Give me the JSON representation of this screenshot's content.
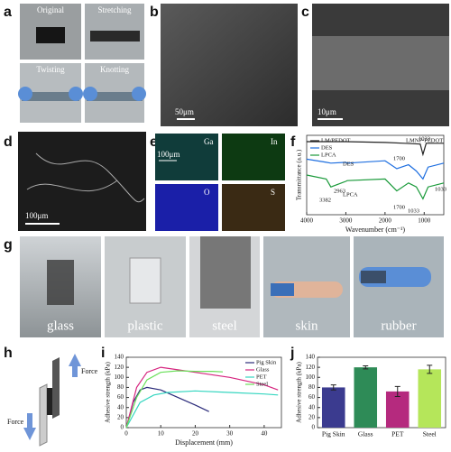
{
  "panels": {
    "a": {
      "label": "a",
      "captions": [
        "Original",
        "Stretching",
        "Twisting",
        "Knotting"
      ]
    },
    "b": {
      "label": "b",
      "scale_bar": "50μm"
    },
    "c": {
      "label": "c",
      "scale_bar": "10μm"
    },
    "d": {
      "label": "d",
      "scale_bar": "100μm"
    },
    "e": {
      "label": "e",
      "maps": [
        "Ga",
        "In",
        "O",
        "S"
      ],
      "scale_bar": "100μm"
    },
    "f": {
      "label": "f"
    },
    "g": {
      "label": "g",
      "substrates": [
        "glass",
        "plastic",
        "steel",
        "skin",
        "rubber"
      ]
    },
    "h": {
      "label": "h",
      "forces": [
        "Force",
        "Force"
      ]
    },
    "i": {
      "label": "i"
    },
    "j": {
      "label": "j"
    }
  },
  "chart_data": [
    {
      "type": "line",
      "x_label": "Wavenumber (cm⁻¹)",
      "y_label": "Transmittance (a.u.)",
      "xlim": [
        4000,
        500
      ],
      "xticks": [
        4000,
        3000,
        2000,
        1000
      ],
      "ylim": [
        0,
        10
      ],
      "legend": "upper left",
      "series": [
        {
          "name": "LM/PEDOT",
          "color": "#222222",
          "x": [
            4000,
            3000,
            2000,
            1500,
            1100,
            1033,
            950,
            500
          ],
          "values": [
            9.2,
            9.2,
            9.1,
            9.0,
            8.9,
            7.6,
            9.0,
            9.0
          ]
        },
        {
          "name": "DES",
          "color": "#1f6fe0",
          "x": [
            4000,
            3500,
            3382,
            3000,
            2963,
            2000,
            1700,
            1400,
            1200,
            1033,
            900,
            500
          ],
          "values": [
            7.0,
            6.6,
            6.5,
            6.6,
            6.5,
            6.8,
            5.8,
            6.3,
            5.5,
            4.5,
            6.0,
            6.5
          ]
        },
        {
          "name": "LPCA",
          "color": "#1a9a3a",
          "x": [
            4000,
            3500,
            3382,
            3000,
            2963,
            2000,
            1700,
            1400,
            1200,
            1033,
            900,
            500
          ],
          "values": [
            5.0,
            4.5,
            3.5,
            4.2,
            4.3,
            4.5,
            3.0,
            4.0,
            3.5,
            2.0,
            3.5,
            4.0
          ]
        }
      ],
      "annotations": [
        "LMNP-PEDOT",
        "DES",
        "LPCA",
        "1700",
        "1033",
        "3382",
        "2963",
        "1700",
        "1033",
        "1033"
      ]
    },
    {
      "type": "line",
      "x_label": "Displacement (mm)",
      "y_label": "Adhesive strength (kPa)",
      "xlim": [
        0,
        45
      ],
      "xticks": [
        0,
        10,
        20,
        30,
        40
      ],
      "ylim": [
        0,
        140
      ],
      "yticks": [
        0,
        20,
        40,
        60,
        80,
        100,
        120,
        140
      ],
      "legend": "upper right",
      "series": [
        {
          "name": "Pig Skin",
          "color": "#2b2b7a",
          "x": [
            0,
            2,
            4,
            6,
            10,
            15,
            20,
            24
          ],
          "values": [
            0,
            50,
            75,
            80,
            75,
            60,
            45,
            32
          ]
        },
        {
          "name": "Glass",
          "color": "#d6247f",
          "x": [
            0,
            3,
            6,
            10,
            15,
            20,
            30,
            40,
            44
          ],
          "values": [
            0,
            80,
            110,
            120,
            115,
            110,
            100,
            85,
            75
          ]
        },
        {
          "name": "PET",
          "color": "#35d6c0",
          "x": [
            0,
            4,
            8,
            12,
            20,
            30,
            40,
            44
          ],
          "values": [
            0,
            50,
            65,
            70,
            73,
            70,
            67,
            65
          ]
        },
        {
          "name": "Steel",
          "color": "#6be05b",
          "x": [
            0,
            3,
            6,
            10,
            15,
            20,
            25,
            28
          ],
          "values": [
            0,
            60,
            95,
            110,
            113,
            112,
            112,
            111
          ]
        }
      ]
    },
    {
      "type": "bar",
      "y_label": "Adhesive strength (kPa)",
      "categories": [
        "Pig Skin",
        "Glass",
        "PET",
        "Steel"
      ],
      "values": [
        80,
        120,
        72,
        116
      ],
      "errors": [
        5,
        3,
        10,
        8
      ],
      "colors": [
        "#3b3b8f",
        "#2e8b57",
        "#b52a7e",
        "#b5e65a"
      ],
      "ylim": [
        0,
        140
      ],
      "yticks": [
        0,
        20,
        40,
        60,
        80,
        100,
        120,
        140
      ]
    }
  ]
}
